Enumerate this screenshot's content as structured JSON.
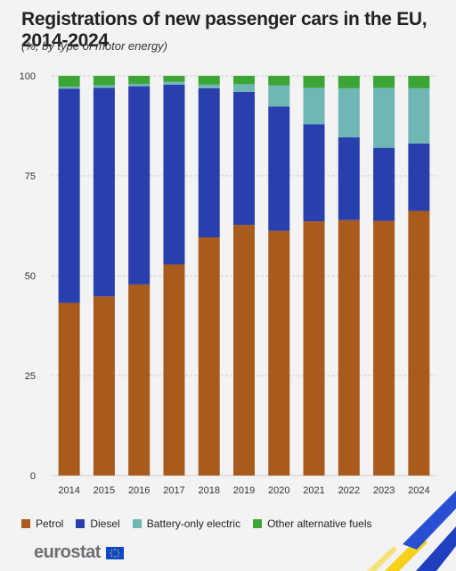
{
  "title": "Registrations of new passenger cars in the EU, 2014-2024",
  "subtitle": "(%, by type of motor energy)",
  "logo_text": "eurostat",
  "colors": {
    "petrol": "#a85b1c",
    "diesel": "#2a3fae",
    "battery": "#6fb7b5",
    "other": "#3ba535",
    "grid": "#bfbfbf"
  },
  "chart_data": {
    "type": "bar",
    "stacked": true,
    "title": "Registrations of new passenger cars in the EU, 2014-2024",
    "subtitle": "(%, by type of motor energy)",
    "xlabel": "",
    "ylabel": "",
    "ylim": [
      0,
      100
    ],
    "yticks": [
      0,
      25,
      50,
      75,
      100
    ],
    "grid": true,
    "legend_position": "bottom",
    "categories": [
      "2014",
      "2015",
      "2016",
      "2017",
      "2018",
      "2019",
      "2020",
      "2021",
      "2022",
      "2023",
      "2024"
    ],
    "series": [
      {
        "name": "Petrol",
        "color": "#a85b1c",
        "values": [
          43.2,
          44.8,
          47.8,
          52.8,
          59.6,
          62.7,
          61.2,
          63.6,
          63.9,
          63.7,
          66.2
        ]
      },
      {
        "name": "Diesel",
        "color": "#2a3fae",
        "values": [
          53.6,
          52.2,
          49.6,
          45.0,
          37.3,
          33.3,
          31.1,
          24.3,
          20.7,
          18.3,
          16.9
        ]
      },
      {
        "name": "Battery-only electric",
        "color": "#6fb7b5",
        "values": [
          0.5,
          0.6,
          0.6,
          0.7,
          0.9,
          1.9,
          5.3,
          9.1,
          12.3,
          15.0,
          13.8
        ]
      },
      {
        "name": "Other alternative fuels",
        "color": "#3ba535",
        "values": [
          2.7,
          2.4,
          2.0,
          1.5,
          2.2,
          2.1,
          2.4,
          3.0,
          3.1,
          3.0,
          3.1
        ]
      }
    ]
  }
}
